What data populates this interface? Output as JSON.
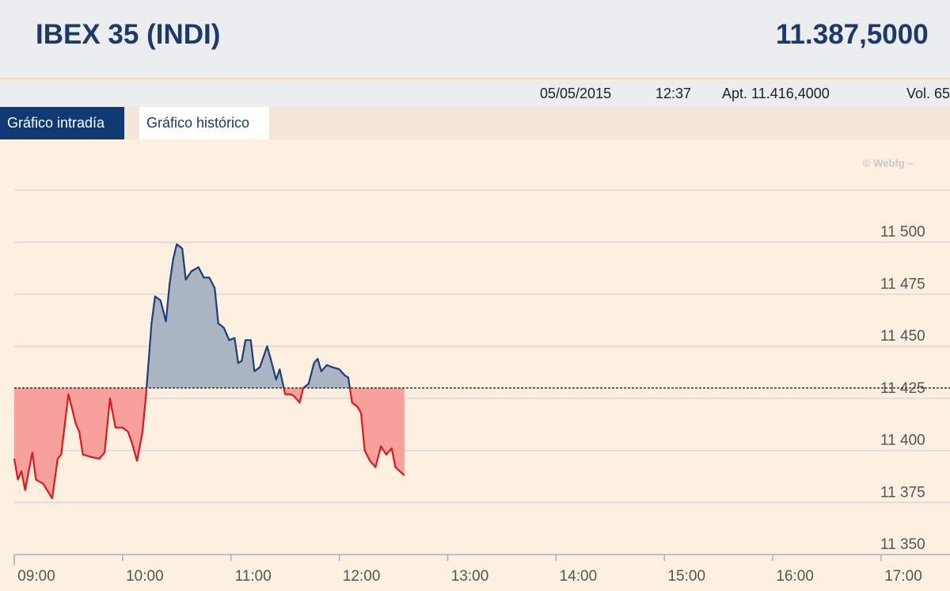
{
  "header": {
    "title": "IBEX 35 (INDI)",
    "value": "11.387,5000"
  },
  "info": {
    "date": "05/05/2015",
    "time": "12:37",
    "open": "Apt. 11.416,4000",
    "volume": "Vol. 65"
  },
  "tabs": [
    "Gráfico intradía",
    "Gráfico histórico"
  ],
  "chart_data": {
    "type": "line",
    "credit": "© Webfg –",
    "x": [
      "09:00",
      "09:02",
      "09:04",
      "09:06",
      "09:10",
      "09:12",
      "09:16",
      "09:21",
      "09:24",
      "09:26",
      "09:30",
      "09:34",
      "09:36",
      "09:38",
      "09:42",
      "09:47",
      "09:50",
      "09:53",
      "09:56",
      "10:00",
      "10:03",
      "10:05",
      "10:08",
      "10:11",
      "10:13",
      "10:16",
      "10:18",
      "10:21",
      "10:24",
      "10:26",
      "10:28",
      "10:30",
      "10:33",
      "10:35",
      "10:38",
      "10:42",
      "10:45",
      "10:48",
      "10:51",
      "10:53",
      "10:56",
      "10:59",
      "11:02",
      "11:04",
      "11:06",
      "11:08",
      "11:11",
      "11:13",
      "11:16",
      "11:20",
      "11:22",
      "11:25",
      "11:27",
      "11:30",
      "11:33",
      "11:35",
      "11:38",
      "11:40",
      "11:43",
      "11:46",
      "11:48",
      "11:50",
      "11:53",
      "11:56",
      "12:00",
      "12:03",
      "12:05",
      "12:07",
      "12:10",
      "12:12",
      "12:14",
      "12:17",
      "12:20",
      "12:23",
      "12:26",
      "12:29",
      "12:31",
      "12:36"
    ],
    "values": [
      11396,
      11386,
      11390,
      11381,
      11399,
      11386,
      11384,
      11377,
      11396,
      11398,
      11427,
      11413,
      11409,
      11398,
      11397,
      11396,
      11399,
      11425,
      11411,
      11411,
      11409,
      11404,
      11395,
      11409,
      11427,
      11461,
      11474,
      11472,
      11462,
      11480,
      11492,
      11499,
      11497,
      11482,
      11486,
      11488,
      11483,
      11483,
      11478,
      11461,
      11459,
      11453,
      11454,
      11442,
      11443,
      11453,
      11453,
      11438,
      11440,
      11450,
      11444,
      11434,
      11439,
      11427,
      11427,
      11426,
      11423,
      11430,
      11432,
      11442,
      11444,
      11438,
      11441,
      11440,
      11439,
      11436,
      11435,
      11423,
      11421,
      11418,
      11400,
      11395,
      11392,
      11402,
      11398,
      11401,
      11392,
      11388
    ],
    "reference": 11430,
    "xlim": [
      "09:00",
      "17:00"
    ],
    "xticks": [
      "09:00",
      "10:00",
      "11:00",
      "12:00",
      "13:00",
      "14:00",
      "15:00",
      "16:00",
      "17:00"
    ],
    "ylim": [
      11350,
      11525
    ],
    "yticks": [
      {
        "value": 11350,
        "label": "11 350"
      },
      {
        "value": 11375,
        "label": "11 375"
      },
      {
        "value": 11400,
        "label": "11 400"
      },
      {
        "value": 11425,
        "label": "11 425"
      },
      {
        "value": 11450,
        "label": "11 450"
      },
      {
        "value": 11475,
        "label": "11 475"
      },
      {
        "value": 11500,
        "label": "11 500"
      }
    ],
    "grid": true,
    "above_color": "#1b3f7a",
    "above_fill": "#aab4c3",
    "below_color": "#e3161b",
    "below_fill": "#f7a19d"
  }
}
